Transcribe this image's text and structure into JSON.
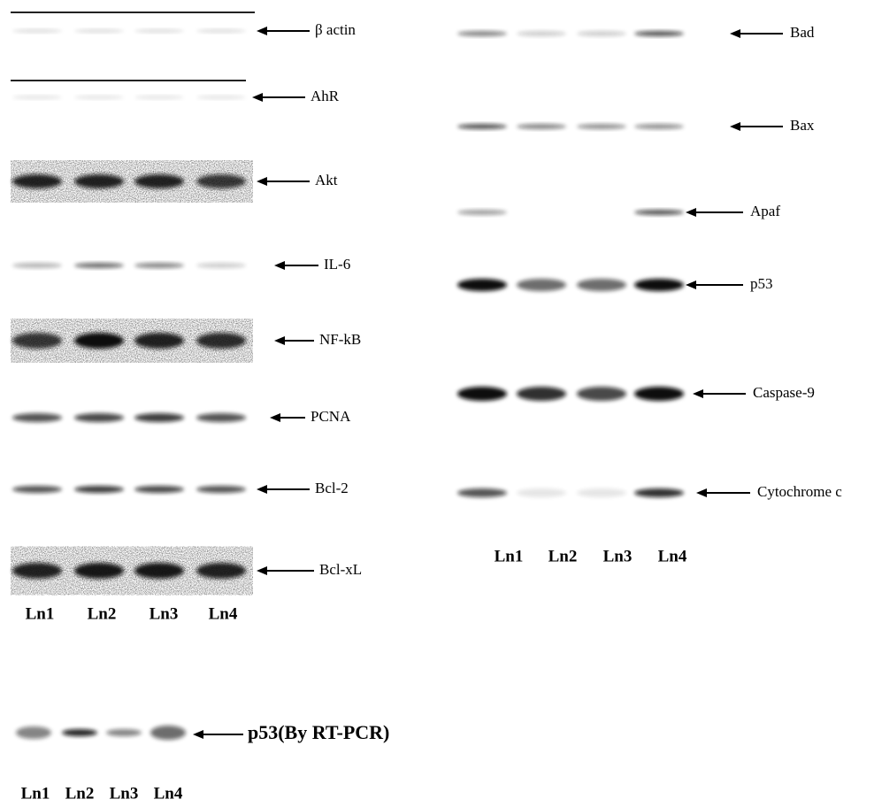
{
  "left_panel": {
    "labels": [
      "β actin",
      "AhR",
      "Akt",
      "IL-6",
      "NF-kB",
      "PCNA",
      "Bcl-2",
      "Bcl-xL"
    ],
    "lanes": [
      "Ln1",
      "Ln2",
      "Ln3",
      "Ln4"
    ]
  },
  "right_panel": {
    "labels": [
      "Bad",
      "Bax",
      "Apaf",
      "p53",
      "Caspase-9",
      "Cytochrome c"
    ],
    "lanes": [
      "Ln1",
      "Ln2",
      "Ln3",
      "Ln4"
    ]
  },
  "rt_pcr_panel": {
    "label": "p53(By RT-PCR)",
    "lanes": [
      "Ln1",
      "Ln2",
      "Ln3",
      "Ln4"
    ]
  }
}
